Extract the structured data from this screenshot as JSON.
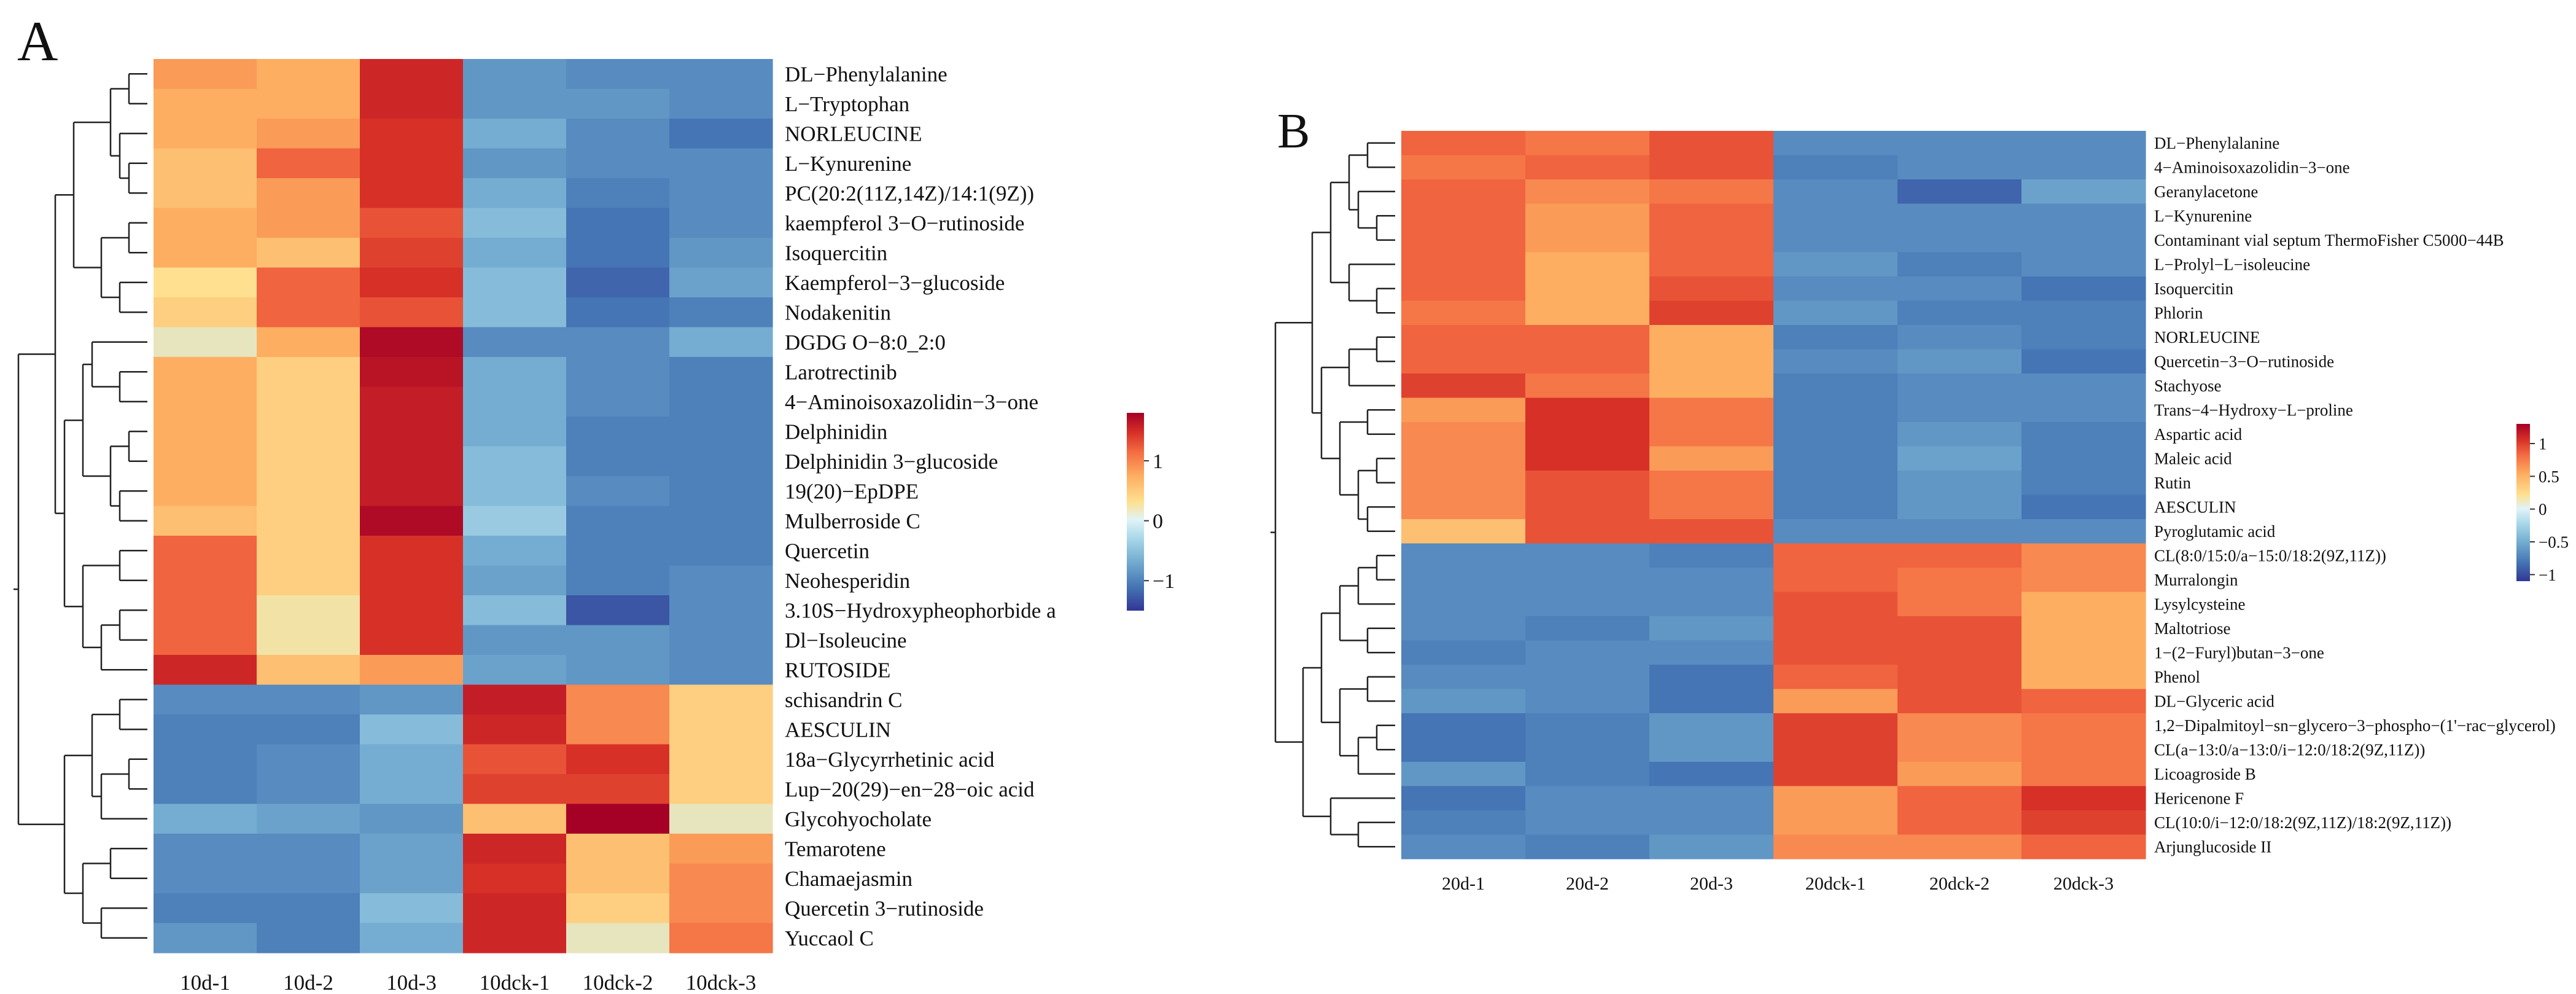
{
  "chart_data": [
    {
      "type": "heatmap",
      "panel_label": "A",
      "columns": [
        "10d-1",
        "10d-2",
        "10d-3",
        "10dck-1",
        "10dck-2",
        "10dck-3"
      ],
      "rows": [
        "DL−Phenylalanine",
        "L−Tryptophan",
        "NORLEUCINE",
        "L−Kynurenine",
        "PC(20:2(11Z,14Z)/14:1(9Z))",
        "kaempferol 3−O−rutinoside",
        "Isoquercitin",
        "Kaempferol−3−glucoside",
        "Nodakenitin",
        "DGDG O−8:0_2:0",
        "Larotrectinib",
        "4−Aminoisoxazolidin−3−one",
        "Delphinidin",
        "Delphinidin 3−glucoside",
        "19(20)−EpDPE",
        "Mulberroside C",
        "Quercetin",
        "Neohesperidin",
        "3.10S−Hydroxypheophorbide a",
        "Dl−Isoleucine",
        "RUTOSIDE",
        "schisandrin C",
        "AESCULIN",
        "18a−Glycyrrhetinic acid",
        "Lup−20(29)−en−28−oic acid",
        "Glycohyocholate",
        "Temarotene",
        "Chamaejasmin",
        "Quercetin 3−rutinoside",
        "Yuccaol C"
      ],
      "values": [
        [
          0.7,
          0.6,
          1.4,
          -0.8,
          -0.9,
          -0.9
        ],
        [
          0.6,
          0.6,
          1.4,
          -0.8,
          -0.8,
          -0.9
        ],
        [
          0.6,
          0.7,
          1.3,
          -0.6,
          -0.9,
          -1.1
        ],
        [
          0.5,
          1.0,
          1.3,
          -0.8,
          -0.9,
          -0.9
        ],
        [
          0.5,
          0.7,
          1.3,
          -0.6,
          -1.0,
          -0.9
        ],
        [
          0.6,
          0.7,
          1.1,
          -0.5,
          -1.1,
          -0.9
        ],
        [
          0.6,
          0.5,
          1.2,
          -0.6,
          -1.1,
          -0.8
        ],
        [
          0.3,
          1.0,
          1.3,
          -0.5,
          -1.2,
          -0.7
        ],
        [
          0.4,
          1.0,
          1.1,
          -0.5,
          -1.1,
          -1.0
        ],
        [
          0.1,
          0.6,
          1.7,
          -0.9,
          -0.9,
          -0.6
        ],
        [
          0.6,
          0.4,
          1.6,
          -0.6,
          -0.9,
          -1.0
        ],
        [
          0.6,
          0.4,
          1.5,
          -0.6,
          -0.9,
          -1.0
        ],
        [
          0.6,
          0.4,
          1.5,
          -0.6,
          -1.0,
          -1.0
        ],
        [
          0.6,
          0.4,
          1.5,
          -0.5,
          -1.0,
          -1.0
        ],
        [
          0.6,
          0.4,
          1.5,
          -0.5,
          -0.9,
          -1.0
        ],
        [
          0.5,
          0.4,
          1.7,
          -0.4,
          -1.0,
          -1.0
        ],
        [
          1.0,
          0.4,
          1.3,
          -0.6,
          -1.0,
          -1.0
        ],
        [
          1.0,
          0.4,
          1.3,
          -0.7,
          -1.0,
          -0.9
        ],
        [
          1.0,
          0.2,
          1.3,
          -0.5,
          -1.3,
          -0.9
        ],
        [
          1.0,
          0.2,
          1.3,
          -0.8,
          -0.8,
          -0.9
        ],
        [
          1.4,
          0.5,
          0.7,
          -0.7,
          -0.8,
          -0.9
        ],
        [
          -0.9,
          -0.9,
          -0.8,
          1.5,
          0.8,
          0.4
        ],
        [
          -1.0,
          -1.0,
          -0.5,
          1.4,
          0.8,
          0.4
        ],
        [
          -1.0,
          -0.9,
          -0.6,
          1.1,
          1.3,
          0.4
        ],
        [
          -1.0,
          -0.9,
          -0.6,
          1.2,
          1.2,
          0.4
        ],
        [
          -0.6,
          -0.7,
          -0.8,
          0.5,
          1.8,
          0.1
        ],
        [
          -0.9,
          -0.9,
          -0.7,
          1.4,
          0.5,
          0.7
        ],
        [
          -0.9,
          -0.9,
          -0.7,
          1.3,
          0.5,
          0.8
        ],
        [
          -1.0,
          -1.0,
          -0.5,
          1.4,
          0.4,
          0.8
        ],
        [
          -0.8,
          -1.0,
          -0.6,
          1.4,
          0.1,
          0.9
        ]
      ],
      "colorbar": {
        "ticks": [
          1,
          0,
          -1
        ],
        "tick_labels": [
          "1",
          "0",
          "−1"
        ],
        "range": [
          -1.5,
          1.8
        ]
      }
    },
    {
      "type": "heatmap",
      "panel_label": "B",
      "columns": [
        "20d-1",
        "20d-2",
        "20d-3",
        "20dck-1",
        "20dck-2",
        "20dck-3"
      ],
      "rows": [
        "DL−Phenylalanine",
        "4−Aminoisoxazolidin−3−one",
        "Geranylacetone",
        "L−Kynurenine",
        "Contaminant vial septum ThermoFisher C5000−44B",
        "L−Prolyl−L−isoleucine",
        "Isoquercitin",
        "Phlorin",
        "NORLEUCINE",
        "Quercetin−3−O−rutinoside",
        "Stachyose",
        "Trans−4−Hydroxy−L−proline",
        "Aspartic acid",
        "Maleic acid",
        "Rutin",
        "AESCULIN",
        "Pyroglutamic acid",
        "CL(8:0/15:0/a−15:0/18:2(9Z,11Z))",
        "Murralongin",
        "Lysylcysteine",
        "Maltotriose",
        "1−(2−Furyl)butan−3−one",
        "Phenol",
        "DL−Glyceric acid",
        "1,2−Dipalmitoyl−sn−glycero−3−phospho−(1'−rac−glycerol)",
        "CL(a−13:0/a−13:0/i−12:0/18:2(9Z,11Z))",
        "Licoagroside B",
        "Hericenone F",
        "CL(10:0/i−12:0/18:2(9Z,11Z)/18:2(9Z,11Z))",
        "Arjunglucoside II"
      ],
      "values": [
        [
          1.0,
          0.9,
          1.1,
          -0.9,
          -0.9,
          -0.9
        ],
        [
          0.9,
          1.0,
          1.1,
          -1.0,
          -0.9,
          -0.9
        ],
        [
          1.0,
          0.8,
          0.9,
          -0.9,
          -1.2,
          -0.7
        ],
        [
          1.0,
          0.7,
          1.0,
          -0.9,
          -0.9,
          -0.9
        ],
        [
          1.0,
          0.7,
          1.0,
          -0.9,
          -0.9,
          -0.9
        ],
        [
          1.0,
          0.6,
          1.0,
          -0.8,
          -1.0,
          -0.9
        ],
        [
          1.0,
          0.6,
          1.1,
          -0.9,
          -0.9,
          -1.1
        ],
        [
          0.9,
          0.6,
          1.2,
          -0.8,
          -1.0,
          -1.0
        ],
        [
          1.0,
          1.0,
          0.6,
          -1.0,
          -0.9,
          -1.0
        ],
        [
          1.0,
          1.0,
          0.6,
          -0.9,
          -0.8,
          -1.1
        ],
        [
          1.2,
          0.9,
          0.6,
          -1.0,
          -0.9,
          -0.9
        ],
        [
          0.7,
          1.3,
          0.9,
          -1.0,
          -0.9,
          -0.9
        ],
        [
          0.8,
          1.3,
          0.9,
          -1.0,
          -0.8,
          -1.0
        ],
        [
          0.8,
          1.3,
          0.7,
          -1.0,
          -0.7,
          -1.0
        ],
        [
          0.8,
          1.1,
          0.9,
          -1.0,
          -0.8,
          -1.0
        ],
        [
          0.8,
          1.1,
          0.9,
          -1.0,
          -0.8,
          -1.1
        ],
        [
          0.5,
          1.1,
          1.1,
          -0.9,
          -0.9,
          -0.9
        ],
        [
          -0.9,
          -0.9,
          -1.0,
          1.0,
          1.0,
          0.8
        ],
        [
          -0.9,
          -0.9,
          -0.9,
          1.0,
          0.9,
          0.8
        ],
        [
          -0.9,
          -0.9,
          -0.9,
          1.1,
          0.9,
          0.6
        ],
        [
          -0.9,
          -1.0,
          -0.8,
          1.1,
          1.1,
          0.6
        ],
        [
          -1.0,
          -0.9,
          -0.9,
          1.1,
          1.1,
          0.6
        ],
        [
          -0.9,
          -0.9,
          -1.1,
          1.0,
          1.1,
          0.6
        ],
        [
          -0.8,
          -0.9,
          -1.1,
          0.7,
          1.1,
          1.0
        ],
        [
          -1.1,
          -1.0,
          -0.8,
          1.2,
          0.8,
          0.9
        ],
        [
          -1.1,
          -1.0,
          -0.8,
          1.2,
          0.8,
          0.9
        ],
        [
          -0.8,
          -1.0,
          -1.1,
          1.2,
          0.7,
          0.9
        ],
        [
          -1.1,
          -0.9,
          -0.9,
          0.7,
          1.0,
          1.3
        ],
        [
          -1.0,
          -0.9,
          -0.9,
          0.7,
          1.0,
          1.2
        ],
        [
          -0.9,
          -1.0,
          -0.8,
          0.8,
          0.8,
          1.0
        ]
      ],
      "colorbar": {
        "ticks": [
          1,
          0.5,
          0,
          -0.5,
          -1
        ],
        "tick_labels": [
          "1",
          "0.5",
          "0",
          "−0.5",
          "−1"
        ],
        "range": [
          -1.1,
          1.3
        ]
      }
    }
  ]
}
